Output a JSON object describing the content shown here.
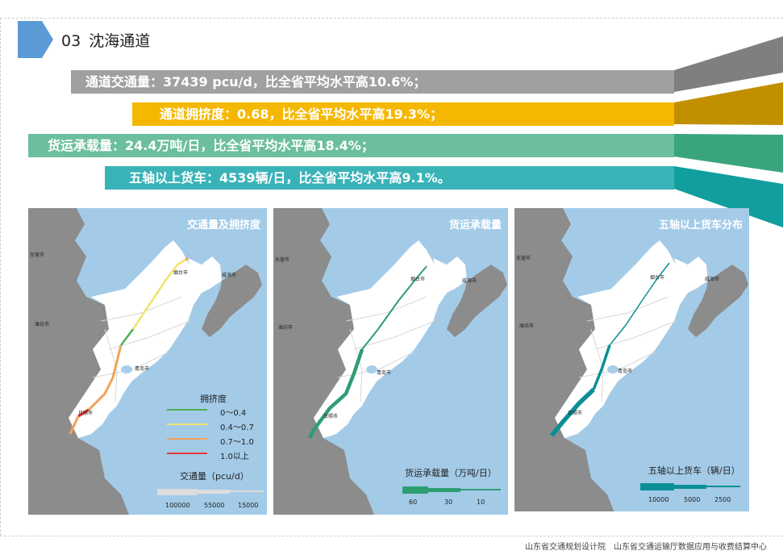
{
  "header": {
    "number": "03",
    "title": "沈海通道"
  },
  "bars": [
    {
      "text": "通道交通量：37439 pcu/d，比全省平均水平高10.6%；",
      "color": "#a0a0a0"
    },
    {
      "text": "通道拥挤度：0.68，比全省平均水平高19.3%；",
      "color": "#f5b800"
    },
    {
      "text": "货运承载量：24.4万吨/日，比全省平均水平高18.4%；",
      "color": "#6cbf9e"
    },
    {
      "text": "五轴以上货车：4539辆/日，比全省平均水平高9.1%。",
      "color": "#3ab3b8"
    }
  ],
  "maps": [
    {
      "title": "交通量及拥挤度",
      "cities": [
        "东营市",
        "烟台市",
        "威海市",
        "潍坊市",
        "青岛市",
        "日照市"
      ],
      "legend_title": "拥挤度",
      "legend_items": [
        {
          "label": "0～0.4",
          "color": "#4caf50"
        },
        {
          "label": "0.4～0.7",
          "color": "#f3e36b"
        },
        {
          "label": "0.7～1.0",
          "color": "#f2a25a"
        },
        {
          "label": "1.0以上",
          "color": "#e53935"
        }
      ],
      "scale_title": "交通量（pcu/d）",
      "scale_ticks": [
        "100000",
        "55000",
        "15000"
      ]
    },
    {
      "title": "货运承载量",
      "cities": [
        "东营市",
        "烟台市",
        "威海市",
        "潍坊市",
        "青岛市",
        "日照市"
      ],
      "scale_title": "货运承载量（万吨/日）",
      "scale_ticks": [
        "60",
        "30",
        "10"
      ]
    },
    {
      "title": "五轴以上货车分布",
      "cities": [
        "东营市",
        "烟台市",
        "威海市",
        "潍坊市",
        "青岛市",
        "日照市"
      ],
      "scale_title": "五轴以上货车（辆/日）",
      "scale_ticks": [
        "10000",
        "5000",
        "2500"
      ]
    }
  ],
  "footer": {
    "org1": "山东省交通规划设计院",
    "org2": "山东省交通运输厅数据应用与收费结算中心"
  }
}
